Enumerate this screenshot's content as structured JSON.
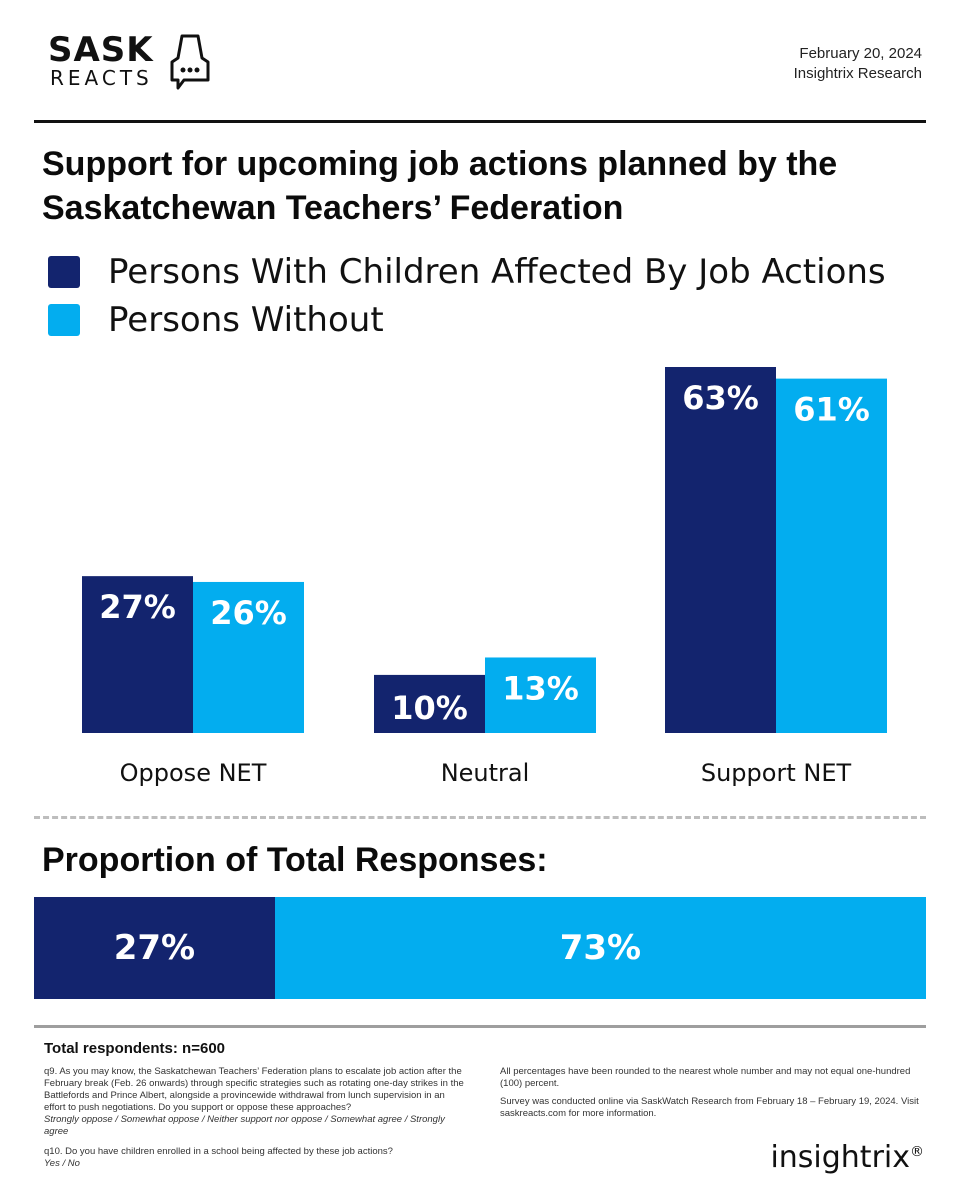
{
  "header": {
    "logo_top": "SASK",
    "logo_bottom": "REACTS",
    "date": "February 20, 2024",
    "org": "Insightrix Research"
  },
  "title": "Support for upcoming job actions planned by the Saskatchewan Teachers’ Federation",
  "colors": {
    "dark": "#13246e",
    "light": "#03adef"
  },
  "chart_data": {
    "type": "bar",
    "categories": [
      "Oppose NET",
      "Neutral",
      "Support NET"
    ],
    "series": [
      {
        "name": "Persons With Children Affected By Job Actions",
        "values": [
          27,
          10,
          63
        ],
        "labels": [
          "27%",
          "10%",
          "63%"
        ],
        "color": "#13246e"
      },
      {
        "name": "Persons Without",
        "values": [
          26,
          13,
          61
        ],
        "labels": [
          "26%",
          "13%",
          "61%"
        ],
        "color": "#03adef"
      }
    ],
    "unit": "%",
    "legend": "top-left",
    "grid": false,
    "ylim": [
      0,
      63
    ]
  },
  "proportion": {
    "title": "Proportion of Total Responses:",
    "segments": [
      {
        "value": 27,
        "label": "27%",
        "color": "#13246e"
      },
      {
        "value": 73,
        "label": "73%",
        "color": "#03adef"
      }
    ]
  },
  "footer": {
    "respondents": "Total respondents: n=600",
    "q9_text": "q9. As you may know, the Saskatchewan Teachers’ Federation plans to escalate job action after the February break (Feb. 26 onwards) through specific strategies such as rotating one-day strikes in the Battlefords and Prince Albert, alongside a provincewide withdrawal from lunch supervision in an effort to push negotiations. Do you support or oppose these approaches?",
    "q9_options": "Strongly oppose / Somewhat oppose / Neither support nor oppose / Somewhat agree / Strongly agree",
    "q10_text": "q10. Do you have children enrolled in a school being affected by these job actions?",
    "q10_options": "Yes / No",
    "note1": "All percentages have been rounded to the nearest whole number and may not equal one-hundred (100) percent.",
    "note2": "Survey was conducted online via SaskWatch Research from  February 18 – February 19, 2024. Visit saskreacts.com for more information.",
    "brand": "insightrix",
    "brand_mark": "®"
  }
}
